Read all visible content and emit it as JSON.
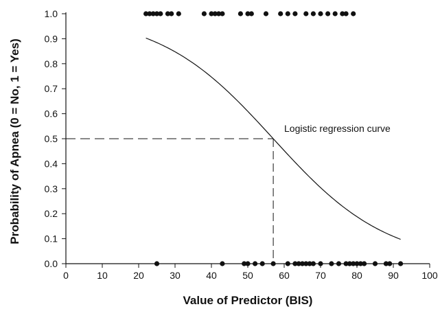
{
  "chart_data": {
    "type": "scatter",
    "title": "",
    "xlabel": "Value of Predictor (BIS)",
    "ylabel": "Probability of Apnea (0 = No, 1 = Yes)",
    "xlim": [
      0,
      100
    ],
    "ylim": [
      0,
      1.0
    ],
    "x_ticks": [
      0,
      10,
      20,
      30,
      40,
      50,
      60,
      70,
      80,
      90,
      100
    ],
    "y_ticks": [
      0.0,
      0.1,
      0.2,
      0.3,
      0.4,
      0.5,
      0.6,
      0.7,
      0.8,
      0.9,
      1.0
    ],
    "x_tick_labels": [
      "0",
      "10",
      "20",
      "30",
      "40",
      "50",
      "60",
      "70",
      "80",
      "90",
      "100"
    ],
    "y_tick_labels": [
      "0.0",
      "0.1",
      "0.2",
      "0.3",
      "0.4",
      "0.5",
      "0.6",
      "0.7",
      "0.8",
      "0.9",
      "1.0"
    ],
    "grid": false,
    "legend": "none",
    "point_color": "#111111",
    "line_color": "#111111",
    "points_apnea_yes": [
      22,
      23,
      24,
      25,
      26,
      28,
      29,
      31,
      38,
      40,
      41,
      42,
      43,
      48,
      50,
      51,
      55,
      59,
      61,
      63,
      66,
      68,
      70,
      72,
      74,
      76,
      77,
      79
    ],
    "points_apnea_no": [
      25,
      43,
      49,
      50,
      52,
      54,
      57,
      61,
      63,
      64,
      65,
      66,
      67,
      68,
      70,
      73,
      75,
      77,
      78,
      79,
      80,
      81,
      82,
      85,
      88,
      89,
      92
    ],
    "curve": {
      "label": "Logistic regression curve",
      "x_range": [
        22,
        92
      ],
      "midpoint": 57,
      "slope": -0.0636
    },
    "reference_lines": {
      "y": 0.5,
      "x": 57
    }
  }
}
